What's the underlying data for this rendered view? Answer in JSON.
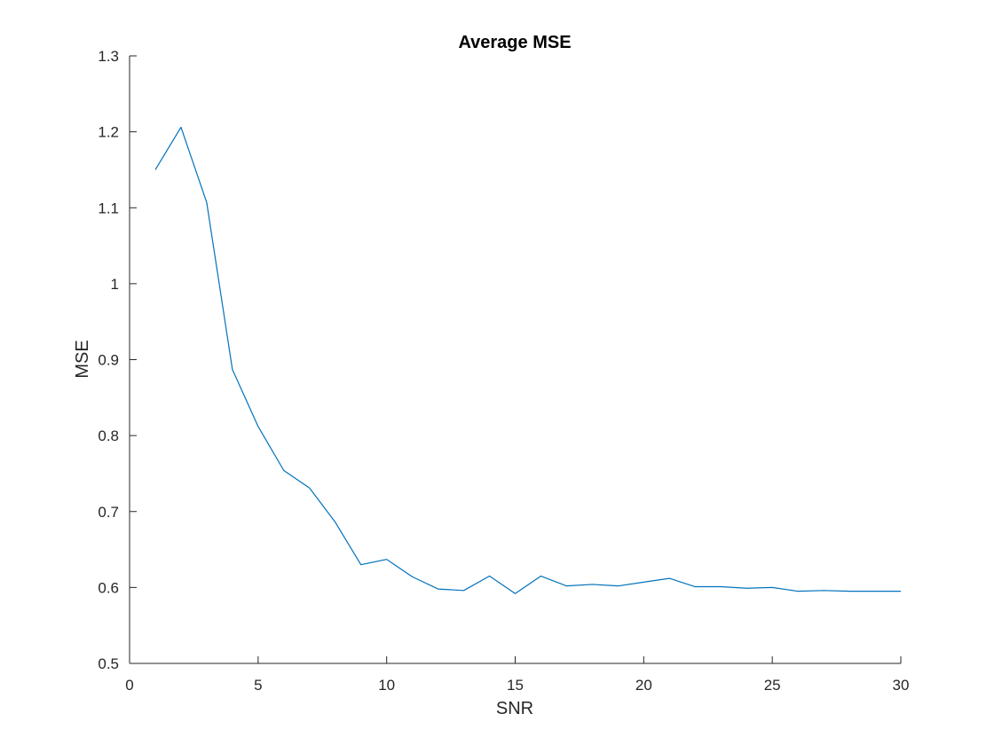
{
  "chart_data": {
    "type": "line",
    "title": "Average MSE",
    "xlabel": "SNR",
    "ylabel": "MSE",
    "xlim": [
      0,
      30
    ],
    "ylim": [
      0.5,
      1.3
    ],
    "xticks": [
      0,
      5,
      10,
      15,
      20,
      25,
      30
    ],
    "xtick_labels": [
      "0",
      "5",
      "10",
      "15",
      "20",
      "25",
      "30"
    ],
    "yticks": [
      0.5,
      0.6,
      0.7,
      0.8,
      0.9,
      1.0,
      1.1,
      1.2,
      1.3
    ],
    "ytick_labels": [
      "0.5",
      "0.6",
      "0.7",
      "0.8",
      "0.9",
      "1",
      "1.1",
      "1.2",
      "1.3"
    ],
    "grid": false,
    "series": [
      {
        "color": "#0072BD",
        "x": [
          1,
          2,
          3,
          4,
          5,
          6,
          7,
          8,
          9,
          10,
          11,
          12,
          13,
          14,
          15,
          16,
          17,
          18,
          19,
          20,
          21,
          22,
          23,
          24,
          25,
          26,
          27,
          28,
          29,
          30
        ],
        "y": [
          1.15,
          1.206,
          1.107,
          0.887,
          0.812,
          0.754,
          0.731,
          0.686,
          0.63,
          0.637,
          0.614,
          0.598,
          0.596,
          0.615,
          0.592,
          0.615,
          0.602,
          0.604,
          0.602,
          0.607,
          0.612,
          0.601,
          0.601,
          0.599,
          0.6,
          0.595,
          0.596,
          0.595,
          0.595,
          0.595
        ]
      }
    ]
  }
}
